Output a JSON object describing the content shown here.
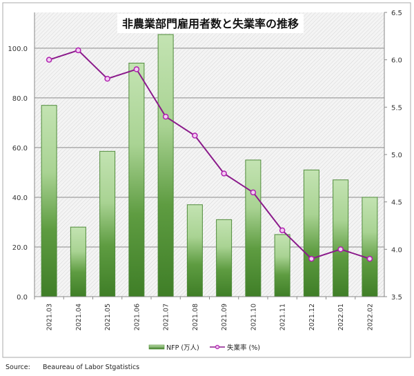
{
  "chart_data": {
    "type": "bar",
    "title": "非農業部門雇用者数と失業率の推移",
    "categories": [
      "2021.03",
      "2021.04",
      "2021.05",
      "2021.06",
      "2021.07",
      "2021.08",
      "2021.09",
      "2021.10",
      "2021.11",
      "2021.12",
      "2022.01",
      "2022.02"
    ],
    "series": [
      {
        "name": "NFP (万人)",
        "type": "bar",
        "axis": "left",
        "color": "#5a9a3c",
        "values": [
          77,
          28,
          58.5,
          94,
          105.5,
          37,
          31,
          55,
          25,
          51,
          47,
          40
        ]
      },
      {
        "name": "失業率 (%)",
        "type": "line",
        "axis": "right",
        "color": "#8b1a8b",
        "values": [
          6.0,
          6.1,
          5.8,
          5.9,
          5.4,
          5.2,
          4.8,
          4.6,
          4.2,
          3.9,
          4.0,
          3.9
        ]
      }
    ],
    "y_left": {
      "ticks": [
        "0.0",
        "20.0",
        "40.0",
        "60.0",
        "80.0",
        "100.0"
      ],
      "range": [
        0,
        114.4
      ]
    },
    "y_right": {
      "ticks": [
        "3.5",
        "4.0",
        "4.5",
        "5.0",
        "5.5",
        "6.0",
        "6.5"
      ],
      "range": [
        3.5,
        6.5
      ]
    },
    "grid": true,
    "legend": "bottom"
  },
  "source": {
    "label": "Source:",
    "text": "Beaureau of Labor Stgatistics"
  }
}
